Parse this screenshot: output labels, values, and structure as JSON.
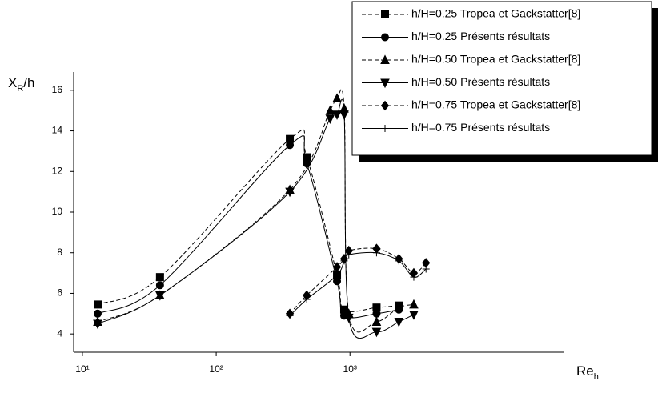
{
  "chart_data": {
    "type": "line",
    "xlabel": [
      "Re",
      "h"
    ],
    "ylabel": [
      "X",
      "R",
      "/h"
    ],
    "xscale": "log",
    "xlim": [
      8.6,
      40000
    ],
    "ylim": [
      3.1,
      16.9
    ],
    "xticks": [
      {
        "value": 10,
        "label": "10¹"
      },
      {
        "value": 100,
        "label": "10²"
      },
      {
        "value": 1000,
        "label": "10³"
      }
    ],
    "yticks": [
      4,
      6,
      8,
      10,
      12,
      14,
      16
    ],
    "grid": false,
    "legend": "upper right",
    "series": [
      {
        "name": "h/H=0.25 Tropea et Gackstatter[8]",
        "color": "#000000",
        "marker": "square",
        "dashed": true,
        "x": [
          13,
          38,
          355,
          475,
          800,
          905,
          1580,
          2320
        ],
        "values": [
          5.45,
          6.8,
          13.6,
          12.7,
          6.9,
          5.2,
          5.3,
          5.4
        ]
      },
      {
        "name": "h/H=0.25 Présents résultats",
        "color": "#000000",
        "marker": "circle",
        "dashed": false,
        "x": [
          13,
          38,
          355,
          475,
          800,
          905,
          1580,
          2320
        ],
        "values": [
          5.0,
          6.4,
          13.3,
          12.4,
          6.6,
          4.9,
          5.0,
          5.2
        ]
      },
      {
        "name": "h/H=0.50 Tropea et Gackstatter[8]",
        "color": "#000000",
        "marker": "triangle-up",
        "dashed": true,
        "x": [
          13,
          38,
          355,
          710,
          800,
          905,
          980,
          1580,
          2320,
          3000
        ],
        "values": [
          4.6,
          5.9,
          11.1,
          15.0,
          15.6,
          15.1,
          5.0,
          4.6,
          5.3,
          5.45
        ]
      },
      {
        "name": "h/H=0.50 Présents résultats",
        "color": "#000000",
        "marker": "triangle-down",
        "dashed": false,
        "x": [
          13,
          38,
          355,
          710,
          800,
          905,
          980,
          1580,
          2320,
          3000
        ],
        "values": [
          4.5,
          5.9,
          11.0,
          14.6,
          14.8,
          14.8,
          4.8,
          4.1,
          4.6,
          4.95
        ]
      },
      {
        "name": "h/H=0.75 Tropea et Gackstatter[8]",
        "color": "#000000",
        "marker": "diamond",
        "dashed": true,
        "x": [
          355,
          475,
          800,
          905,
          980,
          1580,
          2320,
          3000,
          3700
        ],
        "values": [
          5.0,
          5.9,
          7.3,
          7.7,
          8.1,
          8.2,
          7.7,
          7.0,
          7.5
        ]
      },
      {
        "name": "h/H=0.75 Présents résultats",
        "color": "#000000",
        "marker": "plus",
        "dashed": false,
        "x": [
          355,
          475,
          800,
          905,
          980,
          1580,
          2320,
          3000,
          3700
        ],
        "values": [
          4.9,
          5.7,
          6.9,
          7.6,
          7.9,
          8.0,
          7.6,
          6.8,
          7.2
        ]
      }
    ]
  }
}
